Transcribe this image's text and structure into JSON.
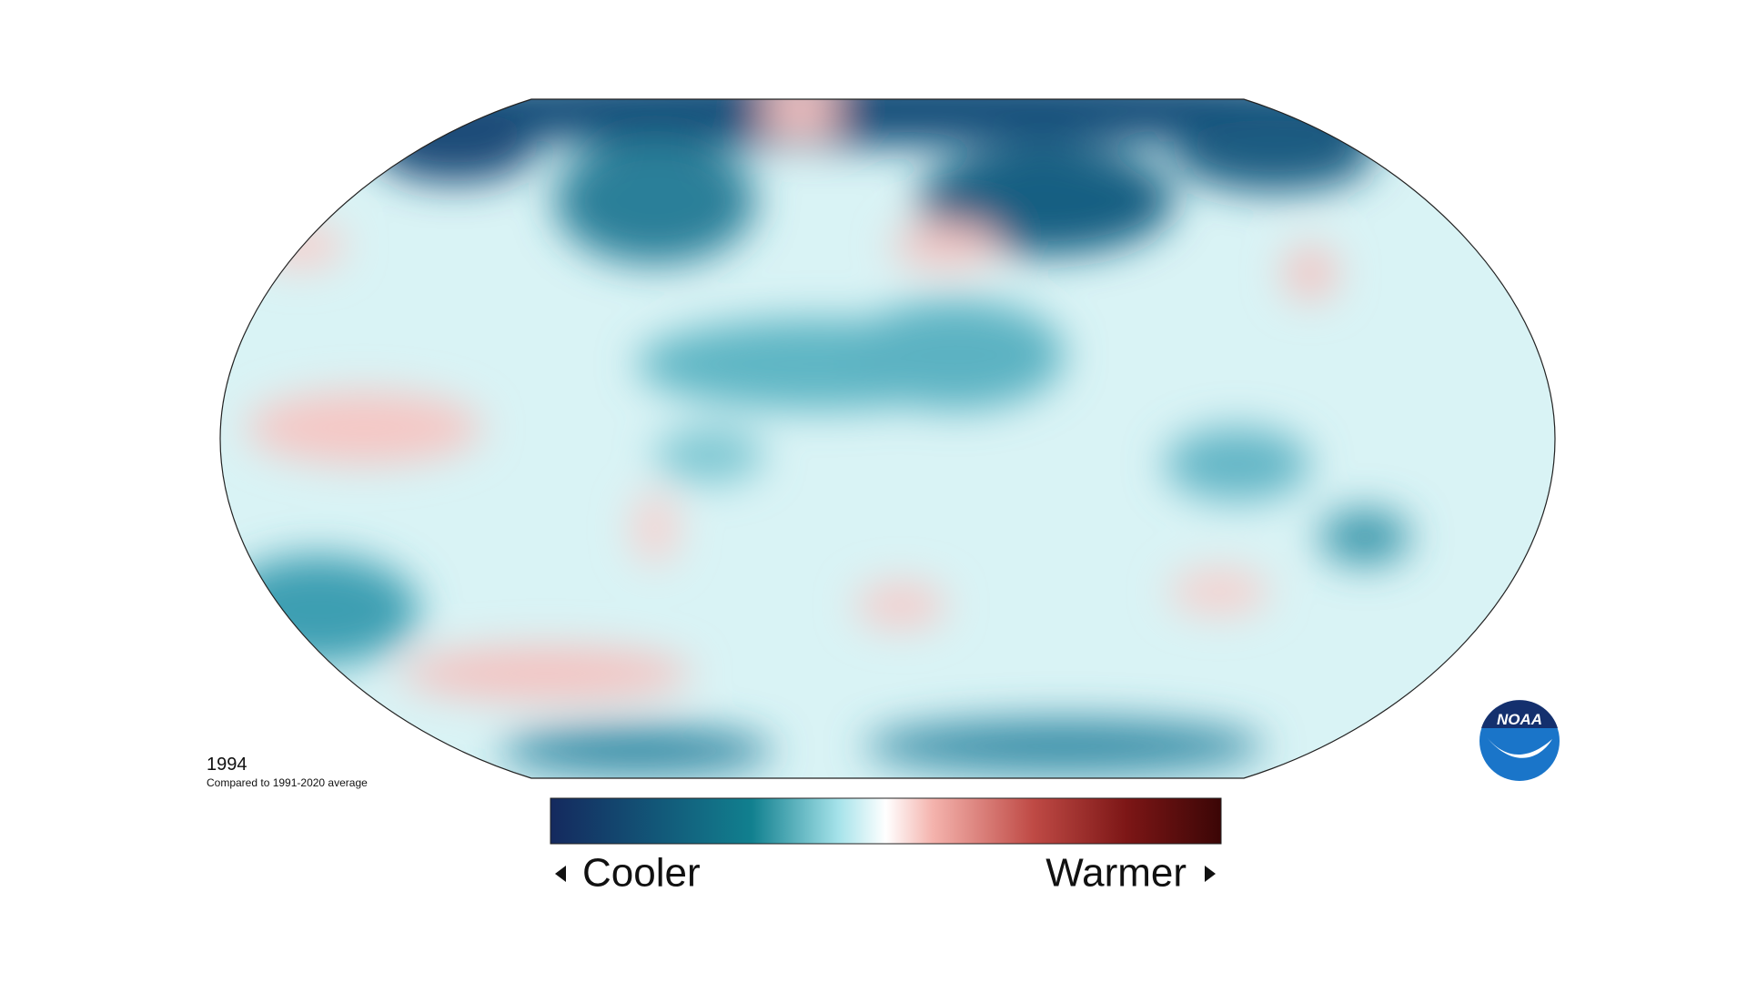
{
  "map": {
    "year": "1994",
    "subtitle": "Compared to 1991-2020 average"
  },
  "legend": {
    "low_label": "Cooler",
    "high_label": "Warmer"
  },
  "logo": {
    "text": "NOAA"
  }
}
